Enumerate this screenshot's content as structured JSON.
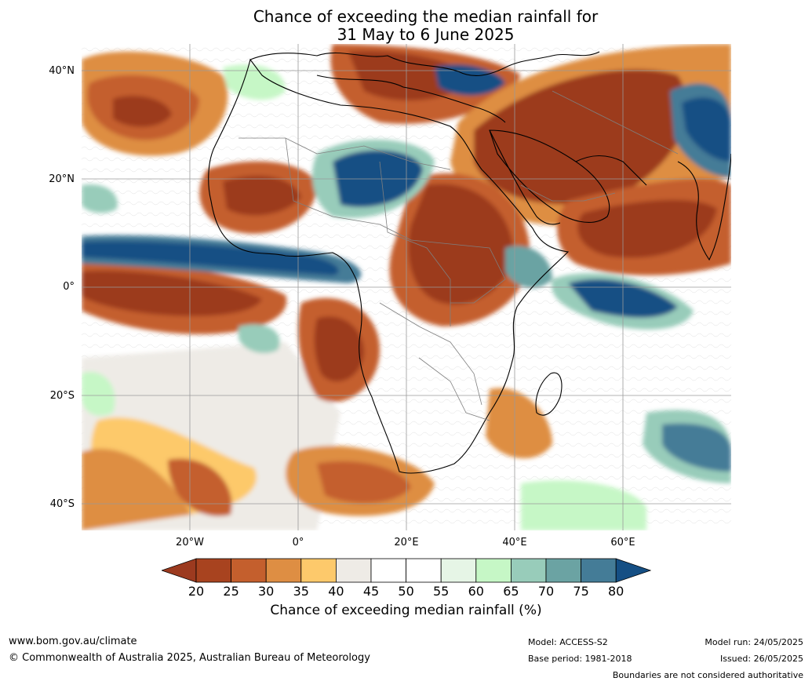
{
  "title": {
    "line1": "Chance of exceeding the median rainfall for",
    "line2": "31 May to 6 June 2025"
  },
  "map": {
    "lat_labels": [
      "40°N",
      "20°N",
      "0°",
      "20°S",
      "40°S"
    ],
    "lon_labels": [
      "20°W",
      "0°",
      "20°E",
      "40°E",
      "60°E"
    ],
    "extent": {
      "lon": [
        -40,
        80
      ],
      "lat": [
        -45,
        45
      ]
    }
  },
  "colorbar": {
    "ticks": [
      "20",
      "25",
      "30",
      "35",
      "40",
      "45",
      "50",
      "55",
      "60",
      "65",
      "70",
      "75",
      "80"
    ],
    "colors": [
      "#9c3a1f",
      "#a8431f",
      "#c45f2d",
      "#de8e43",
      "#fdc96b",
      "#eeebe6",
      "#ffffff",
      "#ffffff",
      "#e6f5e6",
      "#c6f7c6",
      "#98ccba",
      "#6ba3a3",
      "#447c97",
      "#154f84"
    ],
    "label": "Chance of exceeding median rainfall (%)"
  },
  "footer": {
    "url": "www.bom.gov.au/climate",
    "copyright": "© Commonwealth of Australia 2025, Australian Bureau of Meteorology",
    "model": "Model: ACCESS-S2",
    "base_period": "Base period: 1981-2018",
    "model_run": "Model run: 24/05/2025",
    "issued": "Issued: 26/05/2025",
    "disclaimer": "Boundaries are not considered authoritative"
  }
}
